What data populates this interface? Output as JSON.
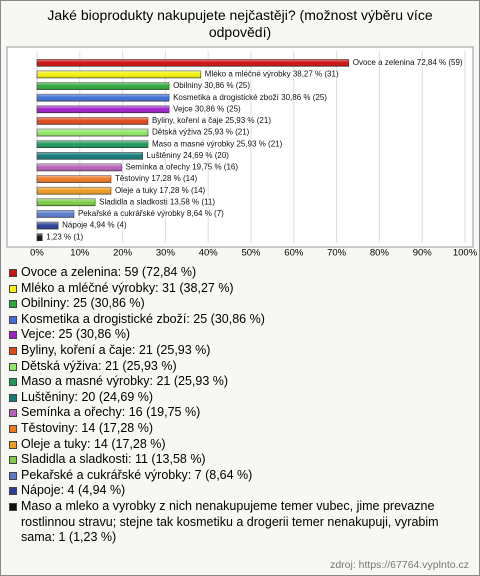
{
  "chart_data": {
    "type": "bar",
    "title": "Jaké bioprodukty nakupujete nejčastěji? (možnost výběru více odpovědí)",
    "values": [
      72.84,
      38.27,
      30.86,
      30.86,
      30.86,
      25.93,
      25.93,
      25.93,
      24.69,
      19.75,
      17.28,
      17.28,
      13.58,
      8.64,
      4.94,
      1.23
    ],
    "value_labels": [
      "Ovoce a zelenina 72,84 % (59)",
      "Mléko a mléčné výrobky 38,27 % (31)",
      "Obilniny 30,86 % (25)",
      "Kosmetika a drogistické zboží 30,86 % (25)",
      "Vejce 30,86 % (25)",
      "Byliny, koření a čaje 25,93 % (21)",
      "Dětská výživa 25,93 % (21)",
      "Maso a masné výrobky 25,93 % (21)",
      "Luštěniny 24,69 % (20)",
      "Semínka a ořechy 19,75 % (16)",
      "Těstoviny 17,28 % (14)",
      "Oleje a tuky 17,28 % (14)",
      "Sladidla a sladkosti 13,58 % (11)",
      "Pekařské a cukrářské výrobky 8,64 % (7)",
      "Nápoje 4,94 % (4)",
      "1,23 % (1)"
    ],
    "legend_labels": [
      "Ovoce a zelenina: 59 (72,84 %)",
      "Mléko a mléčné výrobky: 31 (38,27 %)",
      "Obilniny: 25 (30,86 %)",
      "Kosmetika a drogistické zboží: 25 (30,86 %)",
      "Vejce: 25 (30,86 %)",
      "Byliny, koření a čaje: 21 (25,93 %)",
      "Dětská výživa: 21 (25,93 %)",
      "Maso a masné výrobky: 21 (25,93 %)",
      "Luštěniny: 20 (24,69 %)",
      "Semínka a ořechy: 16 (19,75 %)",
      "Těstoviny: 14 (17,28 %)",
      "Oleje a tuky: 14 (17,28 %)",
      "Sladidla a sladkosti: 11 (13,58 %)",
      "Pekařské a cukrářské výrobky: 7 (8,64 %)",
      "Nápoje: 4 (4,94 %)",
      "Maso a mleko a vyrobky z nich nenakupujeme temer vubec, jime prevazne rostlinnou stravu; stejne tak kosmetiku a drogerii temer nenakupuji, vyrabim sama: 1 (1,23 %)"
    ],
    "colors": [
      "#cc1111",
      "#f2f20a",
      "#2fa83a",
      "#3f6fd6",
      "#a020c8",
      "#e0481a",
      "#8fe868",
      "#1f9a5a",
      "#137a78",
      "#b860b8",
      "#ee7a22",
      "#ee9c22",
      "#7ccc44",
      "#5b7bd0",
      "#2c3d99",
      "#111111"
    ],
    "xlim": [
      0,
      100
    ],
    "xticks": [
      {
        "value": 0,
        "label": "0%"
      },
      {
        "value": 10,
        "label": "10%"
      },
      {
        "value": 20,
        "label": "20%"
      },
      {
        "value": 30,
        "label": "30%"
      },
      {
        "value": 40,
        "label": "40%"
      },
      {
        "value": 50,
        "label": "50%"
      },
      {
        "value": 60,
        "label": "60%"
      },
      {
        "value": 70,
        "label": "70%"
      },
      {
        "value": 80,
        "label": "80%"
      },
      {
        "value": 90,
        "label": "90%"
      },
      {
        "value": 100,
        "label": "100%"
      }
    ],
    "grid": true
  },
  "source": "zdroj: https://67764.vyplnto.cz"
}
